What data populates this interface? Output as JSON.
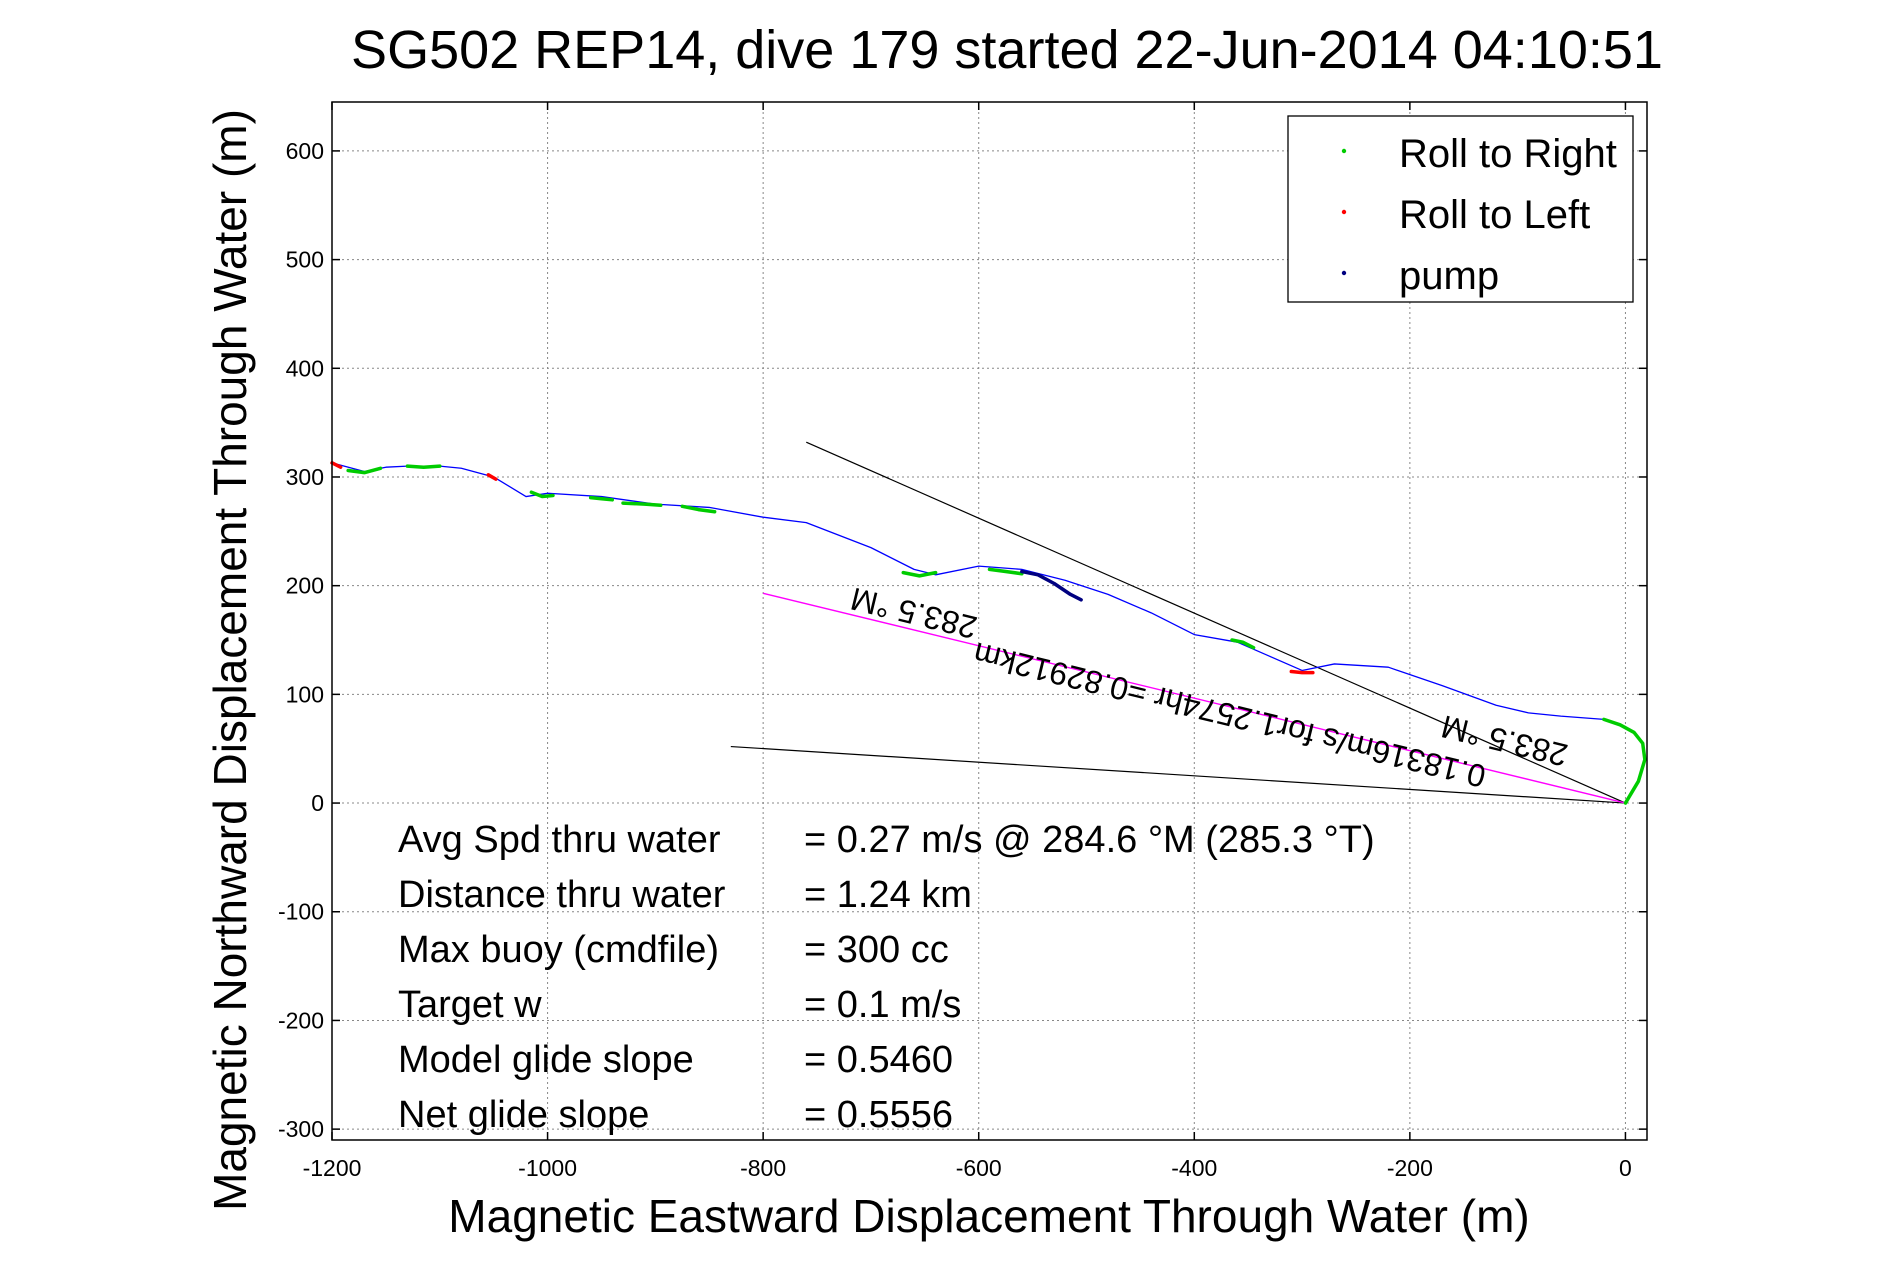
{
  "chart_data": {
    "type": "line",
    "title": "SG502 REP14, dive 179 started 22-Jun-2014 04:10:51",
    "xlabel": "Magnetic Eastward Displacement Through Water (m)",
    "ylabel": "Magnetic Northward Displacement Through Water (m)",
    "xlim": [
      -1200,
      20
    ],
    "ylim": [
      -310,
      645
    ],
    "x_ticks": [
      -1200,
      -1000,
      -800,
      -600,
      -400,
      -200,
      0
    ],
    "y_ticks": [
      600,
      500,
      400,
      300,
      200,
      100,
      0,
      -100,
      -200,
      -300
    ],
    "grid": true,
    "legend_position": "top-right",
    "legend": [
      {
        "label": "Roll to Right",
        "color": "#00cc00"
      },
      {
        "label": "Roll to Left",
        "color": "#ff0000"
      },
      {
        "label": "pump",
        "color": "#000080"
      }
    ],
    "colors": {
      "track": "#0000ff",
      "roll_right": "#00cc00",
      "roll_left": "#ff0000",
      "pump": "#000080",
      "heading_line": "#ff00ff",
      "bounds": "#000000"
    },
    "series": [
      {
        "name": "track",
        "x": [
          0,
          12,
          18,
          16,
          8,
          -5,
          -20,
          -60,
          -90,
          -120,
          -170,
          -220,
          -270,
          -300,
          -330,
          -360,
          -400,
          -440,
          -480,
          -520,
          -560,
          -600,
          -640,
          -660,
          -700,
          -760,
          -800,
          -850,
          -900,
          -950,
          -1000,
          -1020,
          -1050,
          -1080,
          -1100,
          -1130,
          -1150,
          -1170,
          -1200
        ],
        "y": [
          0,
          20,
          40,
          55,
          65,
          72,
          77,
          80,
          83,
          90,
          108,
          125,
          128,
          122,
          135,
          148,
          155,
          175,
          192,
          205,
          215,
          218,
          210,
          215,
          235,
          258,
          263,
          272,
          275,
          282,
          285,
          282,
          300,
          308,
          310,
          310,
          309,
          305,
          313
        ]
      },
      {
        "name": "Roll to Right",
        "x": [
          -20,
          -5,
          8,
          16,
          18,
          12,
          0
        ],
        "y": [
          77,
          72,
          65,
          55,
          40,
          20,
          0
        ]
      },
      {
        "name": "Roll to Right",
        "x": [
          -365,
          -355,
          -345
        ],
        "y": [
          150,
          148,
          143
        ]
      },
      {
        "name": "Roll to Right",
        "x": [
          -590,
          -575,
          -560
        ],
        "y": [
          215,
          213,
          211
        ]
      },
      {
        "name": "Roll to Right",
        "x": [
          -670,
          -655,
          -640
        ],
        "y": [
          212,
          209,
          212
        ]
      },
      {
        "name": "Roll to Right",
        "x": [
          -875,
          -860,
          -845
        ],
        "y": [
          273,
          270,
          268
        ]
      },
      {
        "name": "Roll to Right",
        "x": [
          -930,
          -910,
          -895
        ],
        "y": [
          276,
          275,
          274
        ]
      },
      {
        "name": "Roll to Right",
        "x": [
          -960,
          -950,
          -940
        ],
        "y": [
          281,
          280,
          279
        ]
      },
      {
        "name": "Roll to Right",
        "x": [
          -1015,
          -1005,
          -995
        ],
        "y": [
          286,
          282,
          283
        ]
      },
      {
        "name": "Roll to Right",
        "x": [
          -1130,
          -1115,
          -1100
        ],
        "y": [
          310,
          309,
          310
        ]
      },
      {
        "name": "Roll to Right",
        "x": [
          -1185,
          -1170,
          -1155
        ],
        "y": [
          306,
          304,
          308
        ]
      },
      {
        "name": "Roll to Left",
        "x": [
          -310,
          -300,
          -290
        ],
        "y": [
          121,
          120,
          120
        ]
      },
      {
        "name": "Roll to Left",
        "x": [
          -1055,
          -1048
        ],
        "y": [
          302,
          298
        ]
      },
      {
        "name": "Roll to Left",
        "x": [
          -1200,
          -1192
        ],
        "y": [
          313,
          309
        ]
      },
      {
        "name": "pump",
        "x": [
          -560,
          -545,
          -530,
          -515,
          -505
        ],
        "y": [
          213,
          210,
          202,
          192,
          187
        ]
      }
    ],
    "heading_line": {
      "x": [
        0,
        -800
      ],
      "y": [
        0,
        193
      ]
    },
    "bound_lines": [
      {
        "x": [
          0,
          -760
        ],
        "y": [
          0,
          332
        ]
      },
      {
        "x": [
          0,
          -830
        ],
        "y": [
          0,
          52
        ]
      }
    ],
    "annotations": {
      "heading_top": "283.5 °M",
      "heading_main": "0.18316m/s for1.2574hr =0.82912km",
      "heading_end": "283.5 °M"
    },
    "stats": [
      {
        "label": "Avg Spd thru water",
        "value": "=  0.27 m/s @ 284.6 °M (285.3 °T)"
      },
      {
        "label": "Distance thru water",
        "value": "=  1.24 km"
      },
      {
        "label": "Max buoy (cmdfile)",
        "value": "= 300 cc"
      },
      {
        "label": "Target w",
        "value": "= 0.1 m/s"
      },
      {
        "label": "Model glide slope",
        "value": "= 0.5460"
      },
      {
        "label": "Net glide slope",
        "value": "= 0.5556"
      }
    ]
  }
}
